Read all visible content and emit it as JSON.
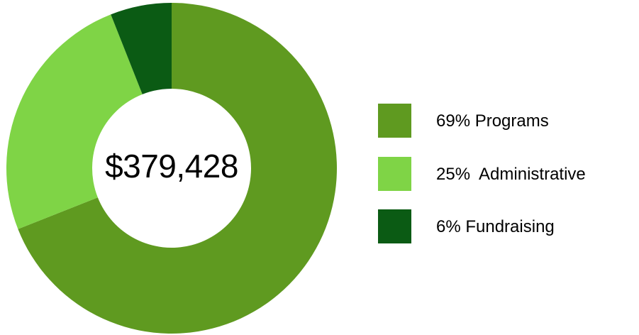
{
  "chart_data": {
    "type": "pie",
    "donut": true,
    "center_label": "$379,428",
    "start_angle_deg": 0,
    "direction": "clockwise",
    "slices": [
      {
        "label": "69% Programs",
        "value": 69,
        "color": "#5f9a20"
      },
      {
        "label": "25%  Administrative",
        "value": 25,
        "color": "#7fd446"
      },
      {
        "label": "6% Fundraising",
        "value": 6,
        "color": "#0b5b14"
      }
    ],
    "legend": "right",
    "title": ""
  }
}
